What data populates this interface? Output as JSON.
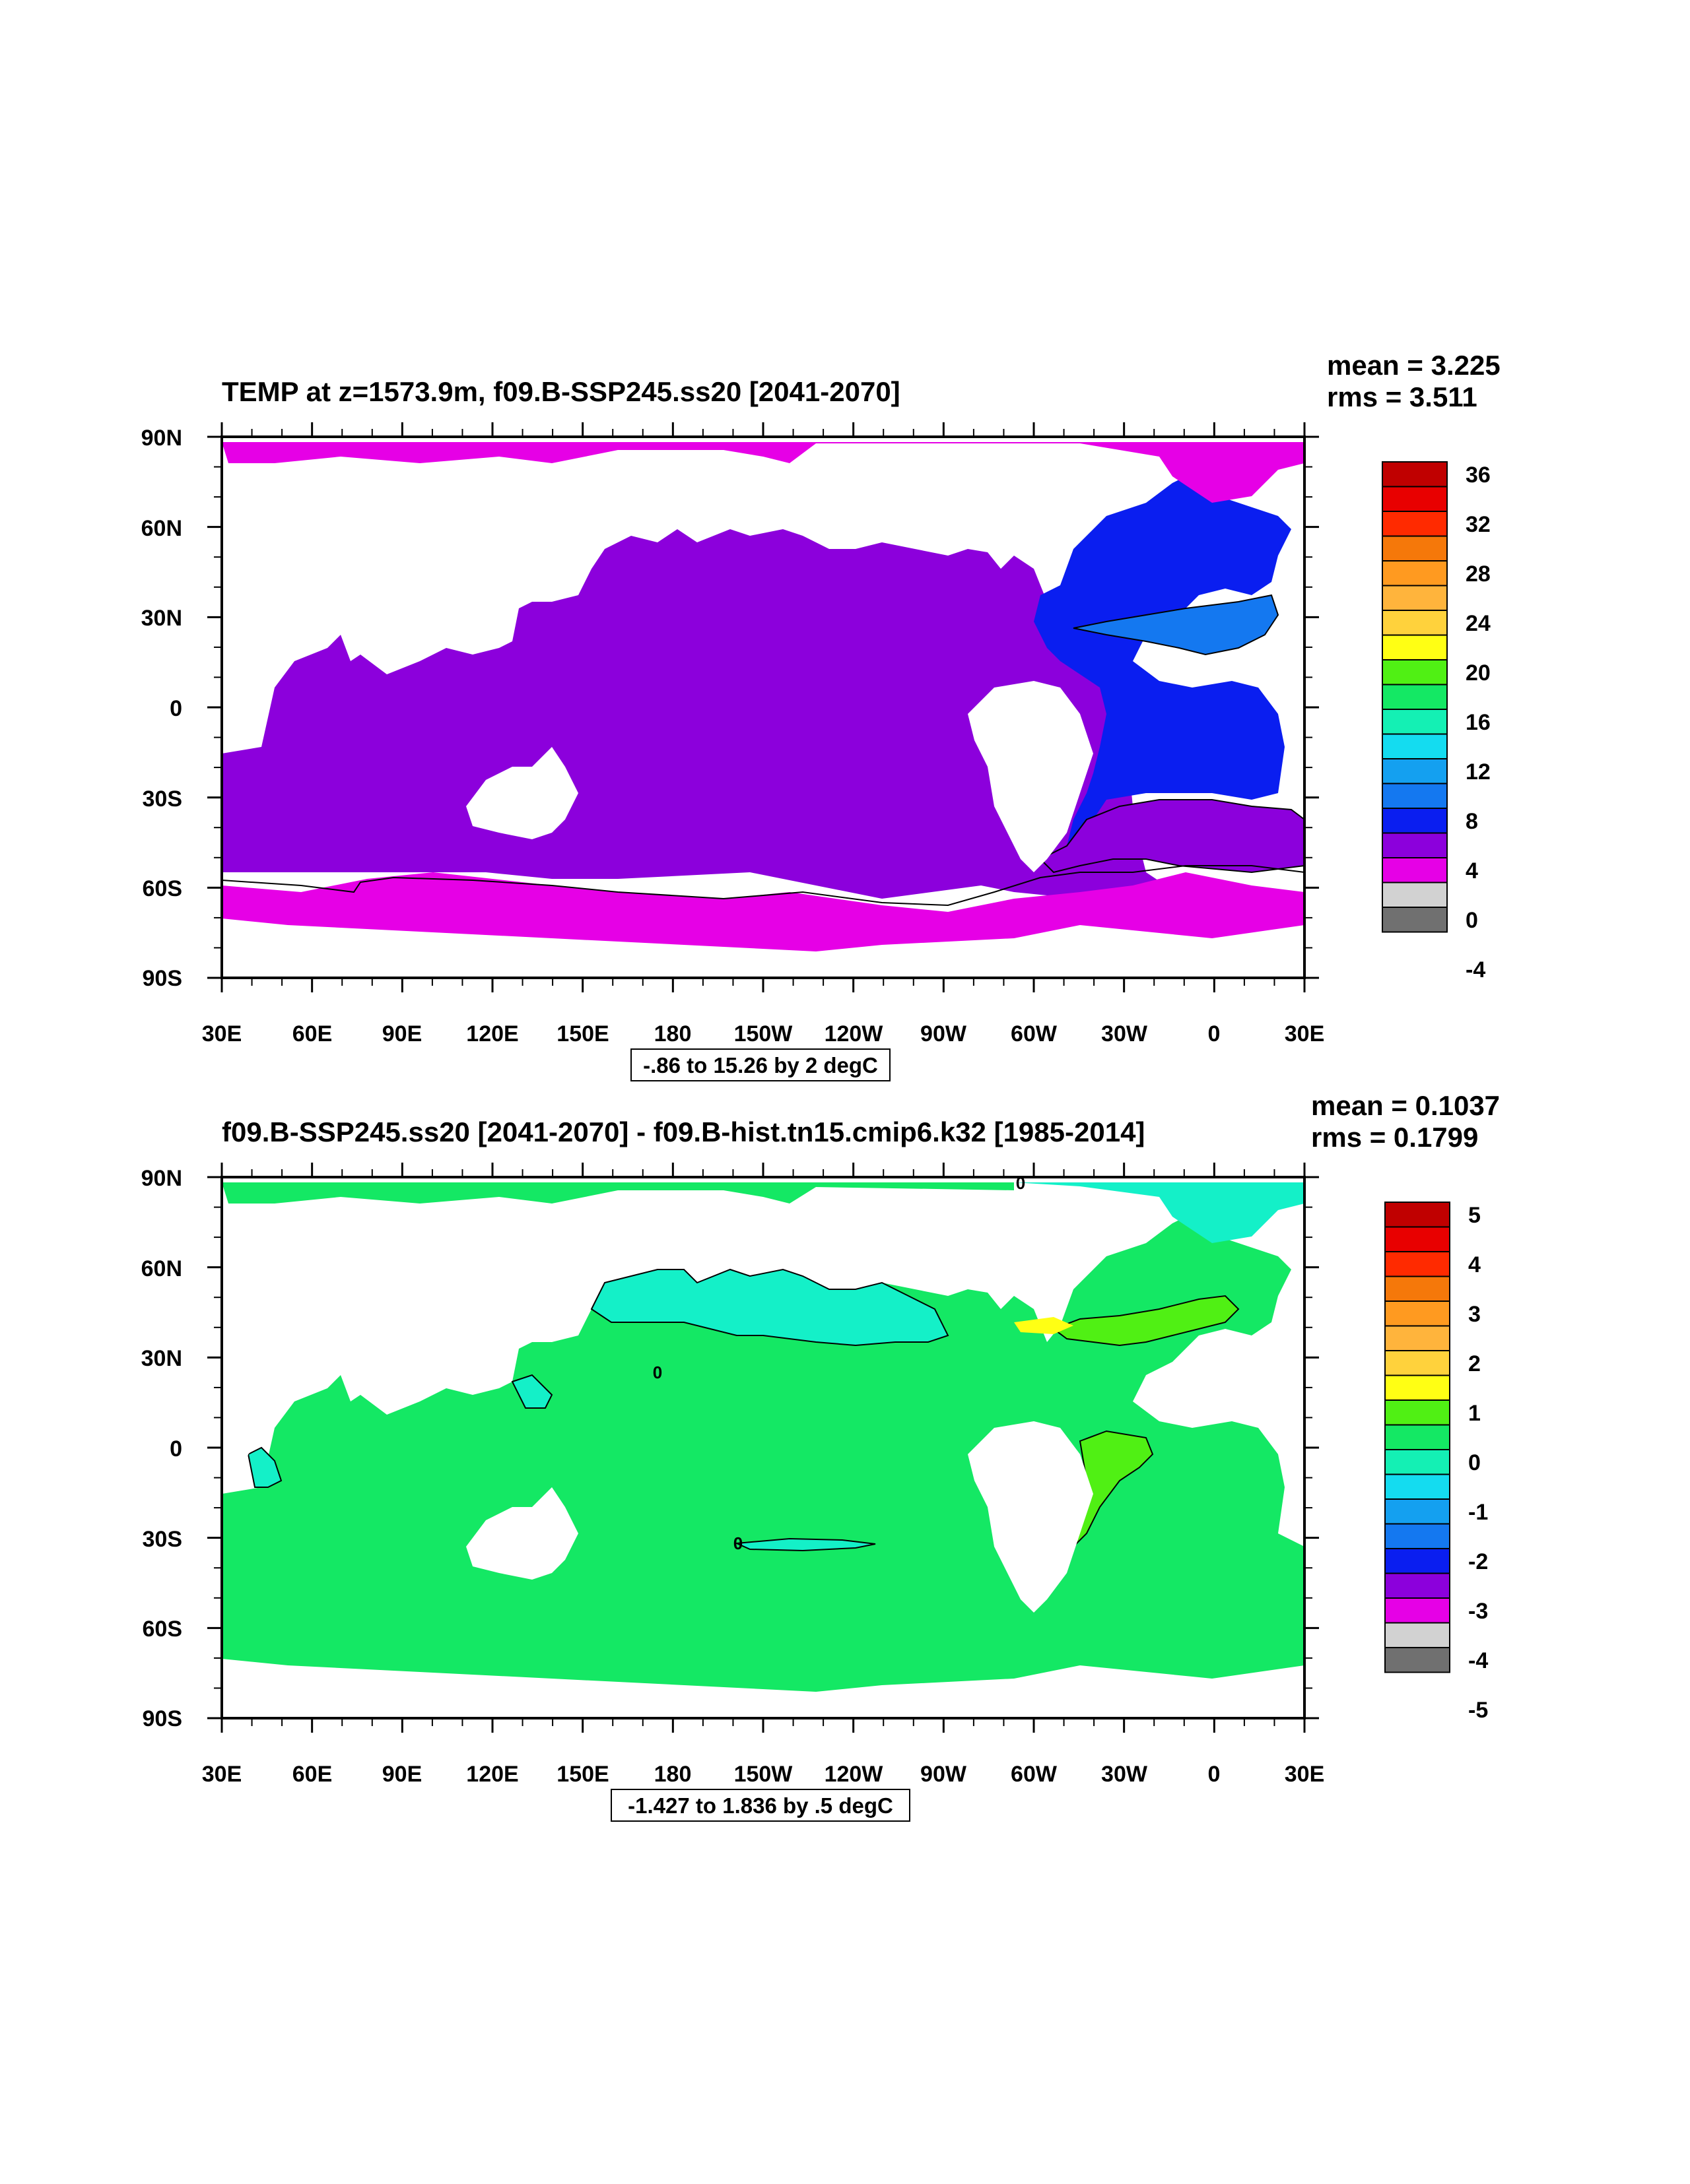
{
  "panels": [
    {
      "id": "top",
      "title": "TEMP at z=1573.9m, f09.B-SSP245.ss20 [2041-2070]",
      "mean_label": "mean = 3.225",
      "rms_label": "rms = 3.511",
      "range_label": "-.86 to 15.26 by 2 degC",
      "lat_ticks": [
        "90N",
        "60N",
        "30N",
        "0",
        "30S",
        "60S",
        "90S"
      ],
      "lon_ticks": [
        "30E",
        "60E",
        "90E",
        "120E",
        "150E",
        "180",
        "150W",
        "120W",
        "90W",
        "60W",
        "30W",
        "0",
        "30E"
      ],
      "colorbar": {
        "labels": [
          "36",
          "32",
          "28",
          "24",
          "20",
          "16",
          "12",
          "8",
          "4",
          "0",
          "-4"
        ],
        "colors": [
          "#c00000",
          "#e80000",
          "#ff2a00",
          "#f5780a",
          "#ff9a20",
          "#ffb43c",
          "#ffd23c",
          "#ffff14",
          "#50f014",
          "#14e864",
          "#14f0b4",
          "#14dcf0",
          "#14a0f0",
          "#1478f0",
          "#0a1ef0",
          "#8c00dc",
          "#e600e6",
          "#d2d2d2",
          "#707070"
        ]
      }
    },
    {
      "id": "bottom",
      "title": "f09.B-SSP245.ss20 [2041-2070] - f09.B-hist.tn15.cmip6.k32 [1985-2014]",
      "mean_label": "mean = 0.1037",
      "rms_label": "rms = 0.1799",
      "range_label": "-1.427 to 1.836 by .5 degC",
      "lat_ticks": [
        "90N",
        "60N",
        "30N",
        "0",
        "30S",
        "60S",
        "90S"
      ],
      "lon_ticks": [
        "30E",
        "60E",
        "90E",
        "120E",
        "150E",
        "180",
        "150W",
        "120W",
        "90W",
        "60W",
        "30W",
        "0",
        "30E"
      ],
      "contour_labels": [
        "0",
        "0",
        "0"
      ],
      "colorbar": {
        "labels": [
          "5",
          "4",
          "3",
          "2",
          "1",
          "0",
          "-1",
          "-2",
          "-3",
          "-4",
          "-5"
        ],
        "colors": [
          "#c00000",
          "#e80000",
          "#ff2a00",
          "#f5780a",
          "#ff9a20",
          "#ffb43c",
          "#ffd23c",
          "#ffff14",
          "#50f014",
          "#14e864",
          "#14f0b4",
          "#14dcf0",
          "#14a0f0",
          "#1478f0",
          "#0a1ef0",
          "#8c00dc",
          "#e600e6",
          "#d2d2d2",
          "#707070"
        ]
      }
    }
  ],
  "colors": {
    "land": "#ffffff",
    "top_ocean_main": "#8c00dc",
    "top_ocean_polar": "#e600e6",
    "top_atlantic": "#0a1ef0",
    "top_atlantic_warm": "#1478f0",
    "bottom_ocean_main": "#14e864",
    "bottom_cool_anomaly": "#14f0c8",
    "bottom_warm_anomaly": "#50f014",
    "bottom_hot_spot": "#ffff14"
  }
}
